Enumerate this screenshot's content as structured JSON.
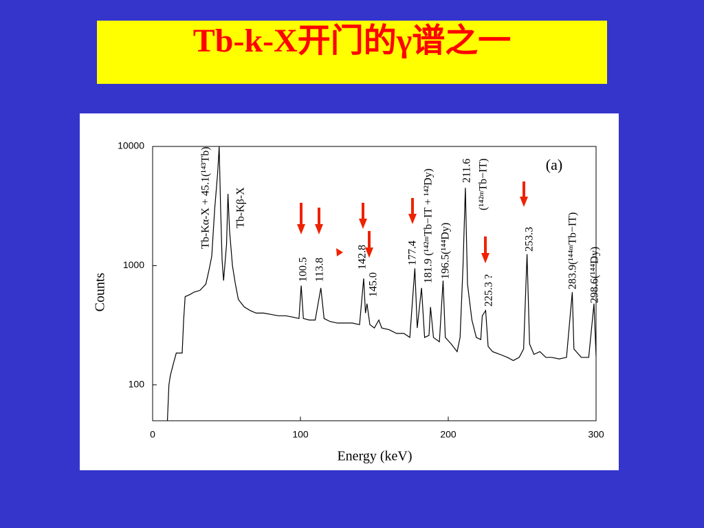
{
  "chart_data": {
    "type": "line",
    "title": "Tb-k-X开门的γ谱之一",
    "xlabel": "Energy (keV)",
    "ylabel": "Counts",
    "panel_label": "(a)",
    "color": "#000000",
    "y_scale": "log",
    "xlim": [
      0,
      300
    ],
    "xticks": [
      0,
      100,
      200,
      300
    ],
    "ylim": [
      50,
      10000
    ],
    "yticks": [
      100,
      1000,
      10000
    ],
    "x": [
      10,
      11,
      12,
      14,
      16,
      20,
      21,
      22,
      25,
      28,
      32,
      36,
      38,
      40,
      42,
      44,
      45,
      46,
      47,
      48,
      50,
      51,
      52,
      54,
      56,
      58,
      62,
      66,
      70,
      75,
      80,
      85,
      90,
      95,
      99,
      100.5,
      102,
      106,
      110,
      113.8,
      116,
      120,
      125,
      130,
      135,
      140,
      142.8,
      144,
      145,
      147,
      150,
      153,
      155,
      160,
      165,
      170,
      174,
      177.4,
      179,
      181.9,
      184,
      187,
      188,
      190,
      194,
      196.5,
      198,
      202,
      206,
      208,
      210,
      211.6,
      213,
      216,
      219,
      222,
      223,
      225.3,
      227,
      230,
      235,
      240,
      244,
      248,
      251,
      253.3,
      255,
      258,
      262,
      266,
      270,
      275,
      280,
      283.9,
      285,
      290,
      295,
      298.6,
      300
    ],
    "values": [
      50,
      100,
      120,
      150,
      185,
      185,
      350,
      550,
      570,
      600,
      620,
      700,
      900,
      1200,
      3000,
      6000,
      10000,
      3000,
      1100,
      750,
      1500,
      4000,
      2000,
      1000,
      700,
      520,
      450,
      420,
      400,
      400,
      390,
      380,
      380,
      370,
      360,
      680,
      360,
      350,
      350,
      650,
      360,
      340,
      330,
      330,
      330,
      320,
      780,
      400,
      480,
      320,
      300,
      350,
      300,
      290,
      270,
      270,
      250,
      950,
      300,
      650,
      250,
      260,
      450,
      250,
      230,
      750,
      250,
      220,
      190,
      250,
      1000,
      4500,
      700,
      350,
      250,
      240,
      380,
      420,
      210,
      190,
      180,
      170,
      160,
      170,
      200,
      1250,
      220,
      180,
      190,
      170,
      170,
      165,
      170,
      600,
      200,
      170,
      170,
      480,
      175
    ],
    "annotations": [
      "Tb-Kα-X + 45.1(¹⁴³Tb)",
      "Tb-Kβ-X",
      "100.5",
      "113.8",
      "142.8",
      "145.0",
      "177.4",
      "181.9 (¹⁴²ᵐTb−IT + ¹⁴²Dy)",
      "196.5(¹⁴⁴Dy)",
      "211.6",
      "(¹⁴²ᵐTb−IT)",
      "225.3 ?",
      "253.3",
      "283.9(¹⁴⁴ᵐTb−IT)",
      "298.6(¹⁴⁴Dy)"
    ]
  }
}
